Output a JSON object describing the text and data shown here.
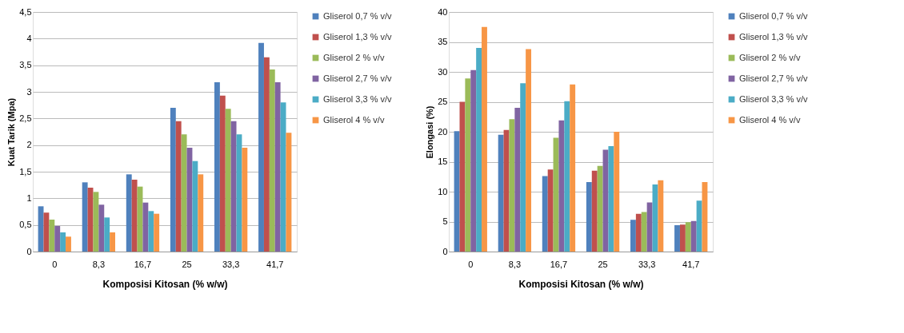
{
  "chart_data": [
    {
      "type": "bar",
      "xlabel": "Komposisi Kitosan (% w/w)",
      "ylabel": "Kuat Tarik (Mpa)",
      "categories": [
        "0",
        "8,3",
        "16,7",
        "25",
        "33,3",
        "41,7"
      ],
      "ylim": [
        0,
        4.5
      ],
      "yticks": [
        0,
        {
          "value": 0.5,
          "label": "0,5"
        },
        1,
        {
          "value": 1.5,
          "label": "1,5"
        },
        2,
        {
          "value": 2.5,
          "label": "2,5"
        },
        3,
        {
          "value": 3.5,
          "label": "3,5"
        },
        4,
        {
          "value": 4.5,
          "label": "4,5"
        }
      ],
      "grid": "y",
      "legend": "right",
      "series": [
        {
          "name": "Gliserol 0,7 % v/v",
          "color": "#4f81bd",
          "values": [
            0.85,
            1.3,
            1.45,
            2.7,
            3.18,
            3.92
          ]
        },
        {
          "name": "Gliserol 1,3 % v/v",
          "color": "#c0504d",
          "values": [
            0.73,
            1.2,
            1.35,
            2.45,
            2.93,
            3.65
          ]
        },
        {
          "name": "Gliserol 2 % v/v",
          "color": "#9bbb59",
          "values": [
            0.6,
            1.12,
            1.22,
            2.2,
            2.68,
            3.42
          ]
        },
        {
          "name": "Gliserol 2,7 % v/v",
          "color": "#8064a2",
          "values": [
            0.48,
            0.88,
            0.92,
            1.95,
            2.45,
            3.18
          ]
        },
        {
          "name": "Gliserol 3,3 % v/v",
          "color": "#4bacc6",
          "values": [
            0.36,
            0.64,
            0.76,
            1.7,
            2.2,
            2.8
          ]
        },
        {
          "name": "Gliserol 4 % v/v",
          "color": "#f79646",
          "values": [
            0.28,
            0.36,
            0.71,
            1.45,
            1.95,
            2.23
          ]
        }
      ]
    },
    {
      "type": "bar",
      "xlabel": "Komposisi Kitosan (% w/w)",
      "ylabel": "Elongasi (%)",
      "categories": [
        "0",
        "8,3",
        "16,7",
        "25",
        "33,3",
        "41,7"
      ],
      "ylim": [
        0,
        40
      ],
      "yticks": [
        0,
        5,
        10,
        15,
        20,
        25,
        30,
        35,
        40
      ],
      "grid": "y",
      "legend": "right",
      "series": [
        {
          "name": "Gliserol 0,7 % v/v",
          "color": "#4f81bd",
          "values": [
            20.1,
            19.5,
            12.6,
            11.6,
            5.3,
            4.4
          ]
        },
        {
          "name": "Gliserol 1,3 % v/v",
          "color": "#c0504d",
          "values": [
            25,
            20.3,
            13.7,
            13.5,
            6.3,
            4.5
          ]
        },
        {
          "name": "Gliserol 2 % v/v",
          "color": "#9bbb59",
          "values": [
            28.9,
            22.1,
            19,
            14.3,
            6.6,
            4.9
          ]
        },
        {
          "name": "Gliserol 2,7 % v/v",
          "color": "#8064a2",
          "values": [
            30.3,
            24,
            21.9,
            17,
            8.2,
            5.1
          ]
        },
        {
          "name": "Gliserol 3,3 % v/v",
          "color": "#4bacc6",
          "values": [
            34,
            28.1,
            25.1,
            17.6,
            11.2,
            8.5
          ]
        },
        {
          "name": "Gliserol 4 % v/v",
          "color": "#f79646",
          "values": [
            37.5,
            33.8,
            27.9,
            20,
            11.9,
            11.6
          ]
        }
      ]
    }
  ]
}
